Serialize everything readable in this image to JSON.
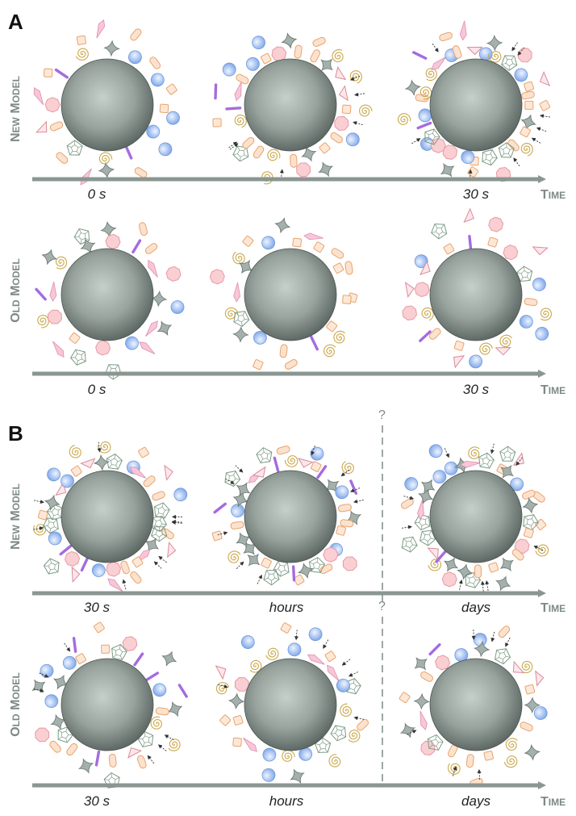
{
  "panels": [
    {
      "label": "A",
      "rows": [
        {
          "model": "New Model",
          "time_labels": [
            "0 s",
            "",
            "30 s"
          ],
          "corona": [
            0.45,
            0.8,
            1.0
          ]
        },
        {
          "model": "Old Model",
          "time_labels": [
            "0 s",
            "",
            "30 s"
          ],
          "corona": [
            0.45,
            0.45,
            0.55
          ]
        }
      ]
    },
    {
      "label": "B",
      "question_mark": "?",
      "rows": [
        {
          "model": "New Model",
          "time_labels": [
            "30 s",
            "hours",
            "days"
          ],
          "corona": [
            1.0,
            1.0,
            1.0
          ]
        },
        {
          "model": "Old Model",
          "time_labels": [
            "30 s",
            "hours",
            "days"
          ],
          "corona": [
            0.7,
            0.6,
            0.6
          ]
        }
      ]
    }
  ],
  "axis_word": "Time",
  "colors": {
    "sphere_dark": "#55605c",
    "sphere_light": "#c6d0cb",
    "arrow": "#8a9691",
    "model_label": "#7d8a84",
    "protein_blue": "#8fb4ee",
    "protein_pink": "#f4b8bd",
    "protein_orange": "#f2c096",
    "protein_purple": "#a56be0",
    "protein_green": "#7c9a84",
    "protein_gold": "#c9a84a"
  },
  "icons": [
    "nanoparticle-sphere",
    "protein-circle",
    "protein-pentagon",
    "protein-star",
    "protein-spiral",
    "protein-rod",
    "protein-capsule",
    "protein-square",
    "protein-flower",
    "protein-diamond",
    "protein-triangle",
    "binding-arrow"
  ]
}
